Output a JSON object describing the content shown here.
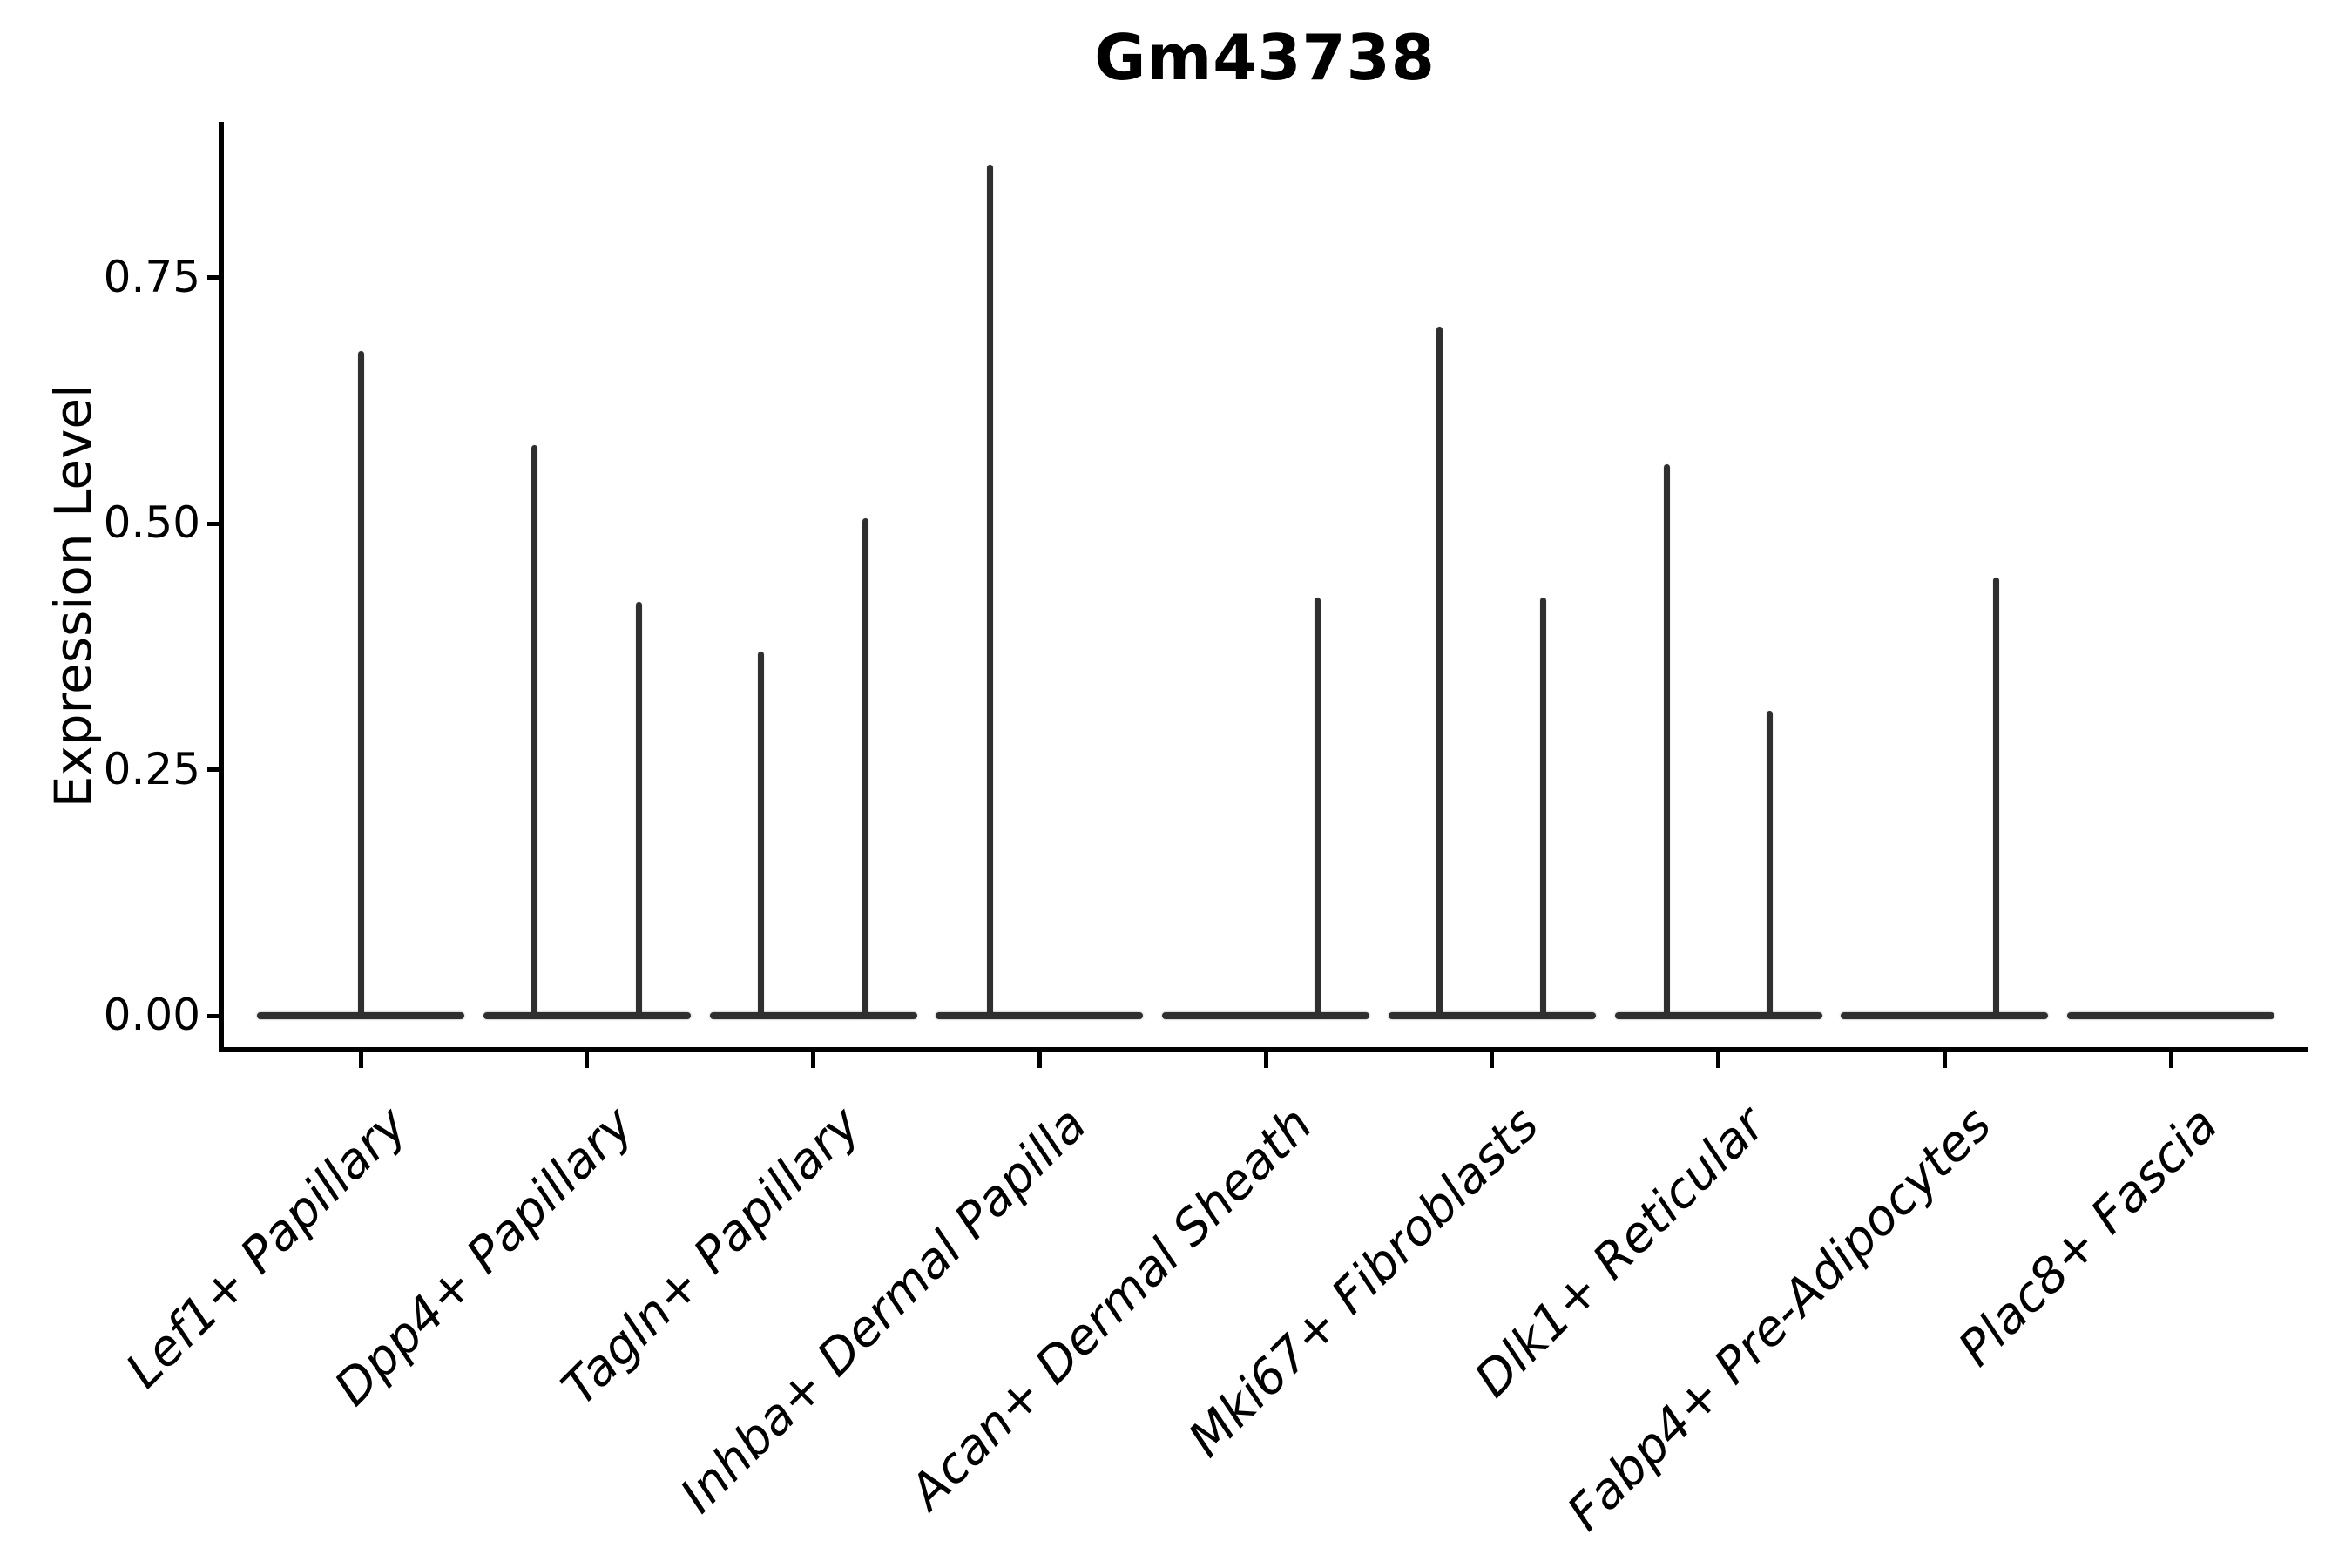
{
  "title": "Gm43738",
  "y_axis": {
    "label": "Expression Level",
    "tick_labels": [
      "0.00",
      "0.25",
      "0.50",
      "0.75"
    ]
  },
  "colors": {
    "violin_line": "#2f2f2f",
    "axis": "#000000",
    "text": "#000000",
    "background": "#ffffff"
  },
  "chart_data": {
    "type": "violin",
    "title": "Gm43738",
    "xlabel": "",
    "ylabel": "Expression Level",
    "ylim": [
      0,
      0.91
    ],
    "ytick_values": [
      0,
      0.25,
      0.5,
      0.75
    ],
    "grid": false,
    "legend": null,
    "categories": [
      "Lef1+ Papillary",
      "Dpp4+ Papillary",
      "Tagln+ Papillary",
      "Inhba+ Dermal Papilla",
      "Acan+ Dermal Sheath",
      "Mki67+ Fibroblasts",
      "Dlk1+ Reticular",
      "Fabp4+ Pre-Adipocytes",
      "Plac8+ Fascia"
    ],
    "description": "Flat violin bases at expression 0 with thin density spikes; spike offset is horizontal shift (px) from category center, max is the peak expression value of the spike.",
    "violins": [
      {
        "category": "Lef1+ Papillary",
        "spikes": [
          {
            "offset": 0,
            "max": 0.675
          }
        ]
      },
      {
        "category": "Dpp4+ Papillary",
        "spikes": [
          {
            "offset": -60,
            "max": 0.58
          },
          {
            "offset": 60,
            "max": 0.42
          }
        ]
      },
      {
        "category": "Tagln+ Papillary",
        "spikes": [
          {
            "offset": -60,
            "max": 0.37
          },
          {
            "offset": 60,
            "max": 0.505
          }
        ]
      },
      {
        "category": "Inhba+ Dermal Papilla",
        "spikes": [
          {
            "offset": -57,
            "max": 0.865
          }
        ]
      },
      {
        "category": "Acan+ Dermal Sheath",
        "spikes": [
          {
            "offset": 59,
            "max": 0.425
          }
        ]
      },
      {
        "category": "Mki67+ Fibroblasts",
        "spikes": [
          {
            "offset": -60,
            "max": 0.7
          },
          {
            "offset": 59,
            "max": 0.425
          }
        ]
      },
      {
        "category": "Dlk1+ Reticular",
        "spikes": [
          {
            "offset": -59,
            "max": 0.56
          },
          {
            "offset": 59,
            "max": 0.31
          }
        ]
      },
      {
        "category": "Fabp4+ Pre-Adipocytes",
        "spikes": [
          {
            "offset": 59,
            "max": 0.445
          }
        ]
      },
      {
        "category": "Plac8+ Fascia",
        "spikes": []
      }
    ]
  }
}
